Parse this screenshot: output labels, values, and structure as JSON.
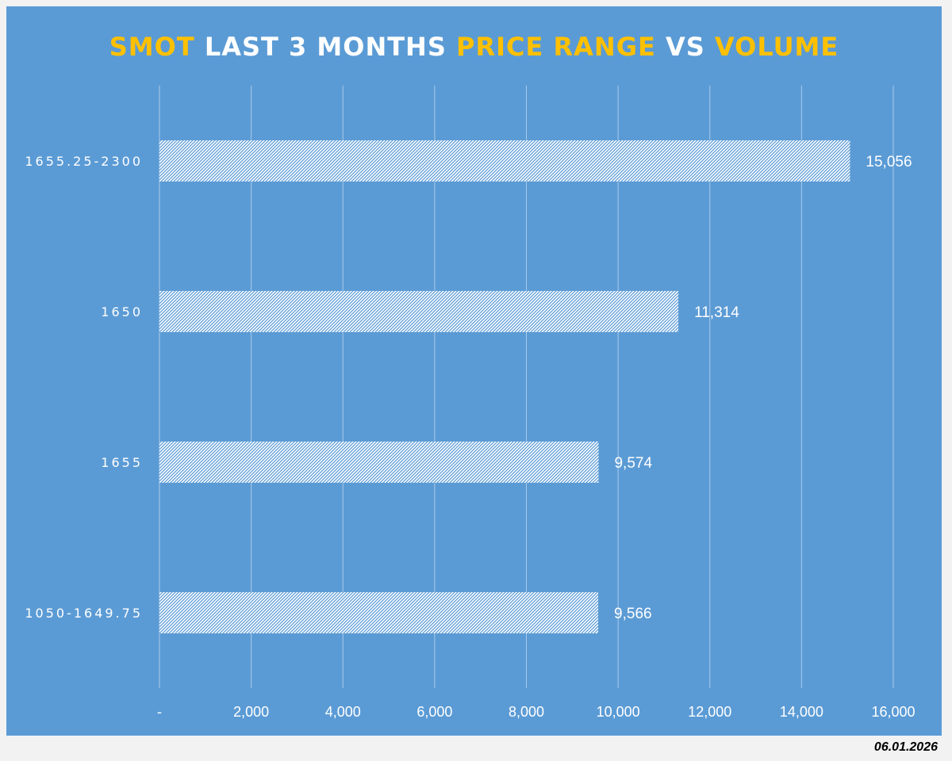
{
  "title": {
    "part1": "SMOT",
    "part2": " LAST 3 MONTHS ",
    "part3": "PRICE RANGE",
    "part4": " VS ",
    "part5": "VOLUME"
  },
  "date": "06.01.2026",
  "colors": {
    "panel": "#5b9bd5",
    "highlight": "#ffc000",
    "text": "#ffffff",
    "bar_fill": "#ffffff",
    "bar_hatch": "#5b9bd5",
    "gridline": "#a9c9ea"
  },
  "chart_data": {
    "type": "bar",
    "orientation": "horizontal",
    "title": "SMOT LAST 3 MONTHS PRICE RANGE VS VOLUME",
    "xlabel": "",
    "ylabel": "",
    "categories": [
      "1655.25-2300",
      "1650",
      "1655",
      "1050-1649.75"
    ],
    "values": [
      15056,
      11314,
      9574,
      9566
    ],
    "value_labels": [
      "15,056",
      "11,314",
      "9,574",
      "9,566"
    ],
    "xlim": [
      0,
      16000
    ],
    "x_ticks": [
      0,
      2000,
      4000,
      6000,
      8000,
      10000,
      12000,
      14000,
      16000
    ],
    "x_tick_labels": [
      "-",
      "2,000",
      "4,000",
      "6,000",
      "8,000",
      "10,000",
      "12,000",
      "14,000",
      "16,000"
    ],
    "grid": true,
    "legend": "none"
  }
}
